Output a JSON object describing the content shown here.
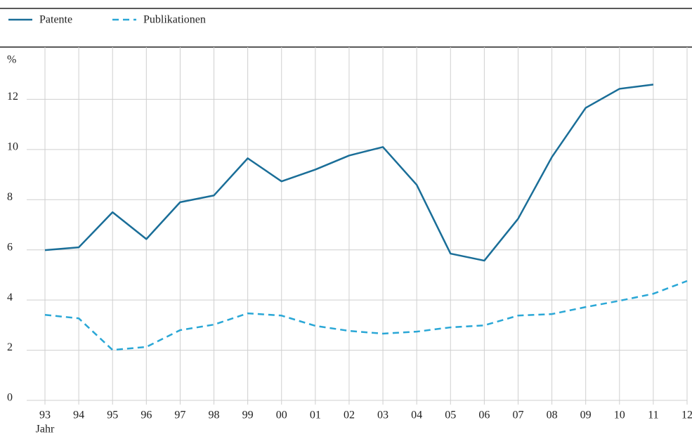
{
  "chart_data": {
    "type": "line",
    "y_label": "%",
    "x_label": "Jahr",
    "categories": [
      "93",
      "94",
      "95",
      "96",
      "97",
      "98",
      "99",
      "00",
      "01",
      "02",
      "03",
      "04",
      "05",
      "06",
      "07",
      "08",
      "09",
      "10",
      "11",
      "12"
    ],
    "series": [
      {
        "name": "Patente",
        "color": "#1a6e98",
        "dash": false,
        "values": [
          5.99,
          6.1,
          7.5,
          6.43,
          7.9,
          8.17,
          9.65,
          8.73,
          9.2,
          9.76,
          10.1,
          8.59,
          5.85,
          5.57,
          7.24,
          9.7,
          11.66,
          12.42,
          12.59,
          null
        ]
      },
      {
        "name": "Publikationen",
        "color": "#2aa7d6",
        "dash": true,
        "values": [
          3.41,
          3.27,
          2.01,
          2.13,
          2.8,
          3.02,
          3.47,
          3.38,
          2.97,
          2.77,
          2.66,
          2.74,
          2.91,
          2.99,
          3.38,
          3.44,
          3.72,
          3.97,
          4.25,
          4.76
        ]
      }
    ],
    "ylim": [
      0,
      14
    ],
    "yticks": [
      0,
      2,
      4,
      6,
      8,
      10,
      12
    ],
    "grid": true
  }
}
